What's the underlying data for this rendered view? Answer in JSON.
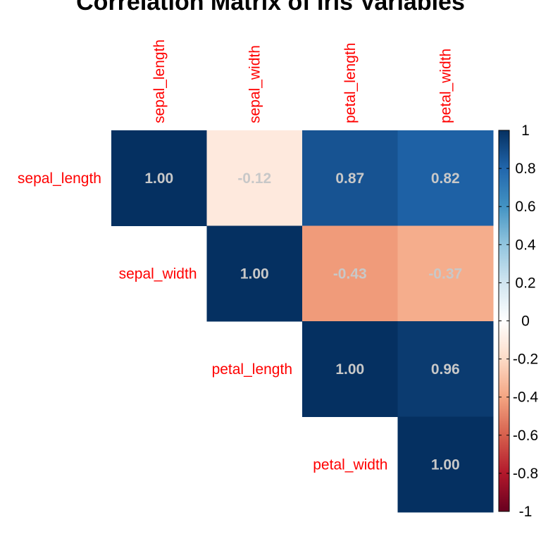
{
  "chart_data": {
    "type": "heatmap",
    "title": "Correlation Matrix of Iris Variables",
    "variables": [
      "sepal_length",
      "sepal_width",
      "petal_length",
      "petal_width"
    ],
    "shape": "upper-triangle",
    "matrix": [
      [
        1.0,
        -0.12,
        0.87,
        0.82
      ],
      [
        -0.12,
        1.0,
        -0.43,
        -0.37
      ],
      [
        0.87,
        -0.43,
        1.0,
        0.96
      ],
      [
        0.82,
        -0.37,
        0.96,
        1.0
      ]
    ],
    "label_color": "#ff0000",
    "value_text_color": "#c8c8c8",
    "colorbar": {
      "range": [
        -1,
        1
      ],
      "ticks": [
        "1",
        "0.8",
        "0.6",
        "0.4",
        "0.2",
        "0",
        "-0.2",
        "-0.4",
        "-0.6",
        "-0.8",
        "-1"
      ],
      "colors": [
        "#67001F",
        "#B2182B",
        "#D6604D",
        "#F4A582",
        "#FDDBC7",
        "#FFFFFF",
        "#D1E5F0",
        "#92C5DE",
        "#4393C3",
        "#2166AC",
        "#053061"
      ]
    }
  }
}
